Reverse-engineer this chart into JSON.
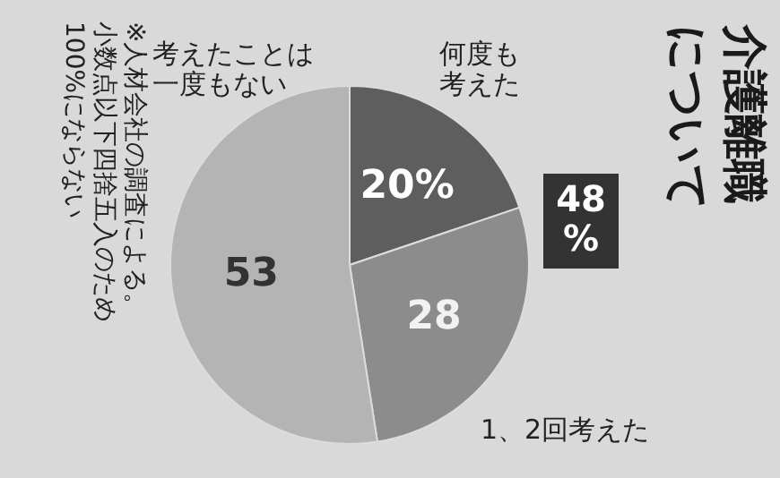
{
  "chart_data": {
    "type": "pie",
    "title": "介護離職について",
    "categories": [
      "何度も考えた",
      "1、2回考えた",
      "考えたことは一度もない"
    ],
    "values": [
      20,
      28,
      53
    ],
    "value_labels": [
      "20%",
      "28",
      "53"
    ],
    "colors": [
      "#5e5e5e",
      "#8c8c8c",
      "#b4b4b4"
    ],
    "annotations": [
      "48%",
      "※人材会社の調査による。小数点以下四捨五入のため100%にならない"
    ]
  }
}
